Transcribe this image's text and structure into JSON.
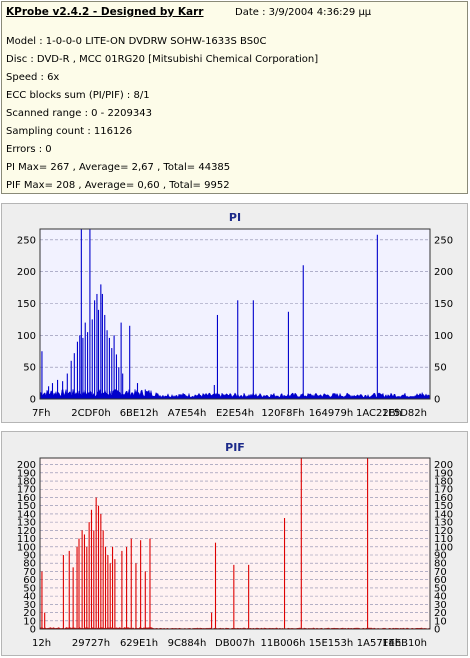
{
  "info": {
    "title": "KProbe v2.4.2 - Designed by Karr",
    "date": "Date : 3/9/2004 4:36:29 μμ",
    "model": "Model : 1-0-0-0 LITE-ON DVDRW SOHW-1633S BS0C",
    "disc": "Disc : DVD-R , MCC 01RG20   [Mitsubishi Chemical Corporation]",
    "speed": "Speed : 6x",
    "ecc": "ECC blocks sum (PI/PIF) : 8/1",
    "range": "Scanned range : 0 - 2209343",
    "sampling": "Sampling count : 116126",
    "errors": "Errors : 0",
    "pi_summary": "PI Max= 267 , Average= 2,67 , Total= 44385",
    "pif_summary": "PIF Max= 208 , Average= 0,60 , Total= 9952"
  },
  "colors": {
    "pi": "#0000cc",
    "pif": "#dd0000",
    "plot_bg_pi": "#f2f2ff",
    "plot_bg_pif": "#fff2f2",
    "title": "#1c2a8a"
  },
  "chart_data": [
    {
      "type": "bar",
      "title": "PI",
      "ylim": [
        0,
        267
      ],
      "yticks": [
        0,
        50,
        100,
        150,
        200,
        250
      ],
      "xticks": [
        "7Fh",
        "2CDF0h",
        "6BE12h",
        "A7E54h",
        "E2E54h",
        "120F8Fh",
        "164979h",
        "1AC22Bh",
        "1F5D82h"
      ],
      "xlim": [
        0,
        1
      ],
      "grid": true,
      "baseline": 8,
      "spikes": [
        [
          0.005,
          75
        ],
        [
          0.022,
          20
        ],
        [
          0.032,
          25
        ],
        [
          0.045,
          30
        ],
        [
          0.058,
          28
        ],
        [
          0.07,
          40
        ],
        [
          0.08,
          60
        ],
        [
          0.088,
          72
        ],
        [
          0.096,
          90
        ],
        [
          0.102,
          100
        ],
        [
          0.106,
          267
        ],
        [
          0.11,
          96
        ],
        [
          0.116,
          120
        ],
        [
          0.122,
          105
        ],
        [
          0.128,
          267
        ],
        [
          0.134,
          125
        ],
        [
          0.14,
          155
        ],
        [
          0.146,
          165
        ],
        [
          0.15,
          140
        ],
        [
          0.156,
          180
        ],
        [
          0.16,
          165
        ],
        [
          0.166,
          132
        ],
        [
          0.172,
          108
        ],
        [
          0.178,
          96
        ],
        [
          0.184,
          80
        ],
        [
          0.19,
          100
        ],
        [
          0.196,
          70
        ],
        [
          0.202,
          50
        ],
        [
          0.208,
          120
        ],
        [
          0.212,
          40
        ],
        [
          0.23,
          115
        ],
        [
          0.25,
          25
        ],
        [
          0.27,
          15
        ],
        [
          0.447,
          22
        ],
        [
          0.455,
          132
        ],
        [
          0.507,
          155
        ],
        [
          0.547,
          155
        ],
        [
          0.637,
          137
        ],
        [
          0.675,
          210
        ],
        [
          0.865,
          258
        ],
        [
          0.98,
          10
        ]
      ]
    },
    {
      "type": "bar",
      "title": "PIF",
      "ylim": [
        0,
        208
      ],
      "yticks": [
        0,
        10,
        20,
        30,
        40,
        50,
        60,
        70,
        80,
        90,
        100,
        110,
        120,
        130,
        140,
        150,
        160,
        170,
        180,
        190,
        200
      ],
      "xticks": [
        "12h",
        "29727h",
        "629E1h",
        "9C884h",
        "DB007h",
        "11B006h",
        "15E153h",
        "1A57F4h",
        "1EEB10h"
      ],
      "xlim": [
        0,
        1
      ],
      "grid": true,
      "baseline": 1,
      "spikes": [
        [
          0.005,
          70
        ],
        [
          0.012,
          20
        ],
        [
          0.06,
          90
        ],
        [
          0.075,
          95
        ],
        [
          0.085,
          75
        ],
        [
          0.095,
          100
        ],
        [
          0.1,
          110
        ],
        [
          0.108,
          120
        ],
        [
          0.114,
          115
        ],
        [
          0.12,
          100
        ],
        [
          0.126,
          130
        ],
        [
          0.132,
          145
        ],
        [
          0.138,
          120
        ],
        [
          0.144,
          160
        ],
        [
          0.15,
          150
        ],
        [
          0.156,
          140
        ],
        [
          0.162,
          120
        ],
        [
          0.168,
          100
        ],
        [
          0.174,
          90
        ],
        [
          0.18,
          80
        ],
        [
          0.186,
          100
        ],
        [
          0.192,
          85
        ],
        [
          0.21,
          95
        ],
        [
          0.222,
          100
        ],
        [
          0.234,
          110
        ],
        [
          0.246,
          80
        ],
        [
          0.258,
          108
        ],
        [
          0.27,
          70
        ],
        [
          0.282,
          110
        ],
        [
          0.44,
          20
        ],
        [
          0.45,
          105
        ],
        [
          0.497,
          78
        ],
        [
          0.535,
          78
        ],
        [
          0.627,
          135
        ],
        [
          0.67,
          208
        ],
        [
          0.84,
          208
        ]
      ]
    }
  ]
}
